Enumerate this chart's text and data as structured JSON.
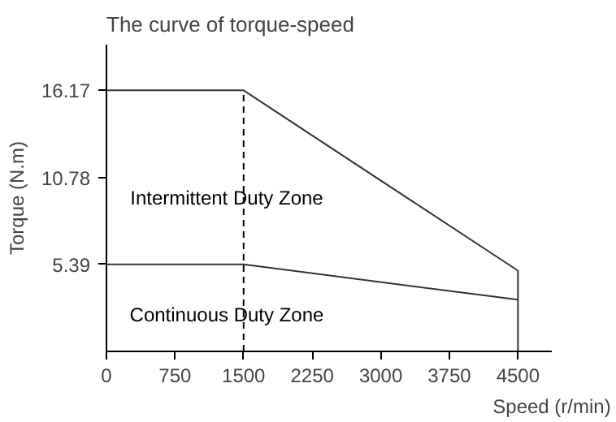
{
  "chart_data": {
    "type": "line",
    "title": "The curve of torque-speed",
    "xlabel": "Speed (r/min)",
    "ylabel": "Torque (N.m)",
    "series": [
      {
        "color": "#333333",
        "x": [
          0,
          1500,
          4500,
          4500
        ],
        "values": [
          16.17,
          16.17,
          5.0,
          0
        ]
      },
      {
        "color": "#333333",
        "x": [
          0,
          1500,
          4500
        ],
        "values": [
          5.39,
          5.39,
          3.2
        ]
      }
    ],
    "ref_lines": [
      {
        "axis": "x",
        "value": 1500,
        "color": "#000000",
        "line_style": "dashed"
      }
    ],
    "xlim": [
      0,
      4870
    ],
    "ylim": [
      0,
      19
    ],
    "xticks": [
      0,
      750,
      1500,
      2250,
      3000,
      3750,
      4500
    ],
    "yticks": [
      5.39,
      10.78,
      16.17
    ],
    "annotations": [
      "Intermittent Duty Zone",
      "Continuous Duty Zone"
    ],
    "grid": false,
    "marker": "none",
    "line_style": "solid"
  }
}
